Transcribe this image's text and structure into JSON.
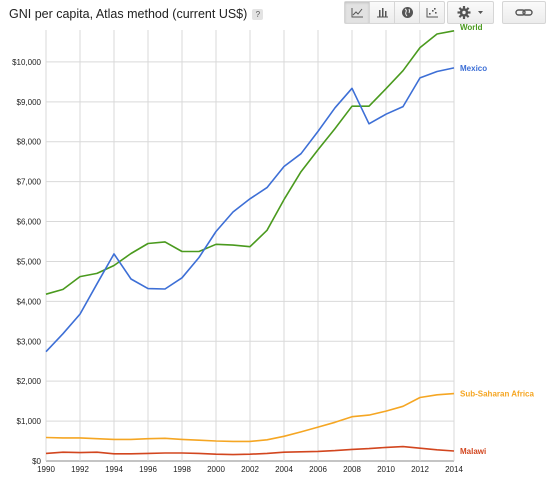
{
  "header": {
    "title": "GNI per capita, Atlas method (current US$)",
    "help_label": "?"
  },
  "toolbar": {
    "views": [
      {
        "icon": "line-chart-icon",
        "active": true
      },
      {
        "icon": "bar-chart-icon",
        "active": false
      },
      {
        "icon": "globe-map-icon",
        "active": false
      },
      {
        "icon": "scatter-chart-icon",
        "active": false
      }
    ],
    "settings_icon": "gear-icon",
    "dropdown_icon": "caret-down-icon",
    "link_icon": "link-icon"
  },
  "colors": {
    "World": "#4a9a1e",
    "Mexico": "#3d6fd6",
    "Sub-Saharan Africa": "#f5a623",
    "Malawi": "#d2461f",
    "grid": "#d9d9d9"
  },
  "chart_data": {
    "type": "line",
    "title": "GNI per capita, Atlas method (current US$)",
    "xlabel": "",
    "ylabel": "",
    "xlim": [
      1990,
      2014
    ],
    "ylim": [
      0,
      10800
    ],
    "x_ticks": [
      1990,
      1992,
      1994,
      1996,
      1998,
      2000,
      2002,
      2004,
      2006,
      2008,
      2010,
      2012,
      2014
    ],
    "y_ticks": [
      0,
      1000,
      2000,
      3000,
      4000,
      5000,
      6000,
      7000,
      8000,
      9000,
      10000
    ],
    "y_tick_labels": [
      "$0",
      "$1,000",
      "$2,000",
      "$3,000",
      "$4,000",
      "$5,000",
      "$6,000",
      "$7,000",
      "$8,000",
      "$9,000",
      "$10,000"
    ],
    "grid": true,
    "legend": "end-of-line labels",
    "x": [
      1990,
      1991,
      1992,
      1993,
      1994,
      1995,
      1996,
      1997,
      1998,
      1999,
      2000,
      2001,
      2002,
      2003,
      2004,
      2005,
      2006,
      2007,
      2008,
      2009,
      2010,
      2011,
      2012,
      2013,
      2014
    ],
    "series": [
      {
        "name": "World",
        "values": [
          4180,
          4300,
          4620,
          4700,
          4900,
          5200,
          5450,
          5490,
          5250,
          5250,
          5430,
          5410,
          5370,
          5780,
          6550,
          7250,
          7800,
          8330,
          8890,
          8890,
          9330,
          9780,
          10360,
          10700,
          10780
        ]
      },
      {
        "name": "Mexico",
        "values": [
          2740,
          3190,
          3680,
          4440,
          5190,
          4560,
          4320,
          4310,
          4590,
          5100,
          5750,
          6240,
          6570,
          6850,
          7380,
          7700,
          8260,
          8850,
          9340,
          8450,
          8690,
          8880,
          9600,
          9760,
          9850
        ]
      },
      {
        "name": "Sub-Saharan Africa",
        "values": [
          590,
          580,
          580,
          560,
          540,
          540,
          560,
          570,
          540,
          520,
          500,
          490,
          490,
          530,
          620,
          730,
          850,
          970,
          1110,
          1150,
          1250,
          1370,
          1590,
          1660,
          1690
        ]
      },
      {
        "name": "Malawi",
        "values": [
          190,
          220,
          210,
          220,
          180,
          180,
          190,
          200,
          200,
          190,
          170,
          160,
          170,
          190,
          220,
          230,
          240,
          260,
          290,
          310,
          340,
          360,
          320,
          280,
          250
        ]
      }
    ]
  }
}
